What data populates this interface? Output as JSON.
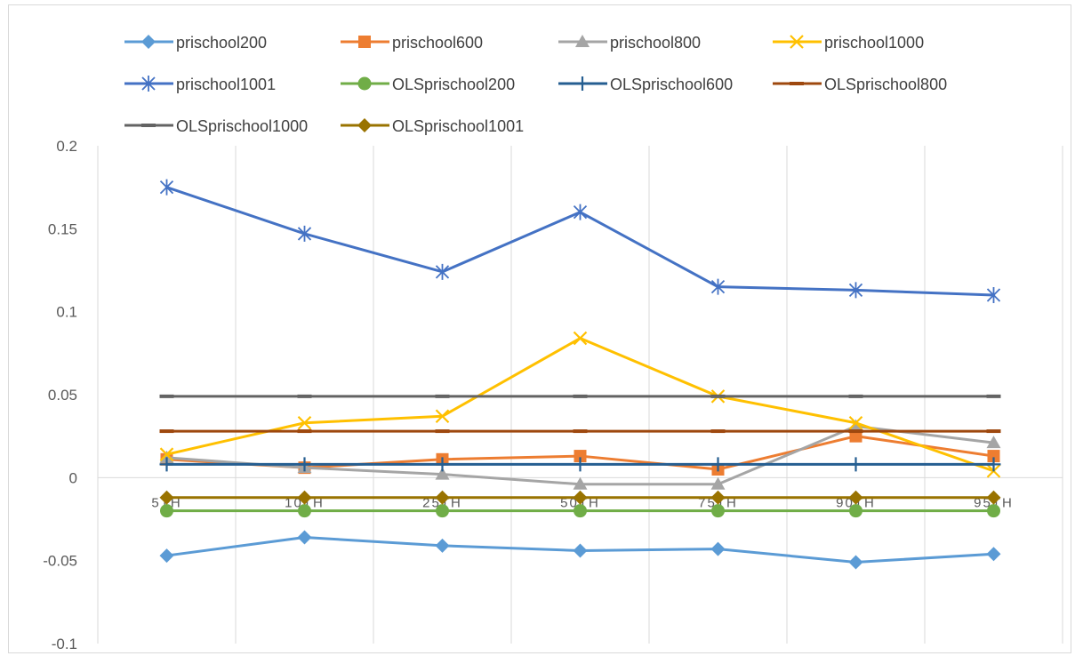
{
  "chart_data": {
    "type": "line",
    "title": "",
    "xlabel": "",
    "ylabel": "",
    "categories": [
      "5TH",
      "10TH",
      "25TH",
      "50TH",
      "75TH",
      "90TH",
      "95TH"
    ],
    "ylim": [
      -0.1,
      0.2
    ],
    "yticks": [
      -0.1,
      -0.05,
      0,
      0.05,
      0.1,
      0.15,
      0.2
    ],
    "ytick_labels": [
      "-0.1",
      "-0.05",
      "0",
      "0.05",
      "0.1",
      "0.15",
      "0.2"
    ],
    "grid": "vertical",
    "legend_position": "top",
    "series": [
      {
        "name": "prischool200",
        "color": "#5B9BD5",
        "marker": "diamond",
        "values": [
          -0.047,
          -0.036,
          -0.041,
          -0.044,
          -0.043,
          -0.051,
          -0.046
        ]
      },
      {
        "name": "prischool600",
        "color": "#ED7D31",
        "marker": "square",
        "values": [
          0.011,
          0.006,
          0.011,
          0.013,
          0.005,
          0.025,
          0.013
        ]
      },
      {
        "name": "prischool800",
        "color": "#A5A5A5",
        "marker": "triangle",
        "values": [
          0.012,
          0.006,
          0.002,
          -0.004,
          -0.004,
          0.031,
          0.021
        ]
      },
      {
        "name": "prischool1000",
        "color": "#FFC000",
        "marker": "x",
        "values": [
          0.014,
          0.033,
          0.037,
          0.084,
          0.049,
          0.033,
          0.004
        ]
      },
      {
        "name": "prischool1001",
        "color": "#4472C4",
        "marker": "star",
        "values": [
          0.175,
          0.147,
          0.124,
          0.16,
          0.115,
          0.113,
          0.11
        ]
      },
      {
        "name": "OLSprischool200",
        "color": "#70AD47",
        "marker": "circle",
        "values": [
          -0.02,
          -0.02,
          -0.02,
          -0.02,
          -0.02,
          -0.02,
          -0.02
        ]
      },
      {
        "name": "OLSprischool600",
        "color": "#255E91",
        "marker": "plus",
        "values": [
          0.008,
          0.008,
          0.008,
          0.008,
          0.008,
          0.008,
          0.008
        ]
      },
      {
        "name": "OLSprischool800",
        "color": "#9E480E",
        "marker": "dash",
        "values": [
          0.028,
          0.028,
          0.028,
          0.028,
          0.028,
          0.028,
          0.028
        ]
      },
      {
        "name": "OLSprischool1000",
        "color": "#636363",
        "marker": "dash",
        "values": [
          0.049,
          0.049,
          0.049,
          0.049,
          0.049,
          0.049,
          0.049
        ]
      },
      {
        "name": "OLSprischool1001",
        "color": "#997300",
        "marker": "diamond",
        "values": [
          -0.012,
          -0.012,
          -0.012,
          -0.012,
          -0.012,
          -0.012,
          -0.012
        ]
      }
    ]
  }
}
